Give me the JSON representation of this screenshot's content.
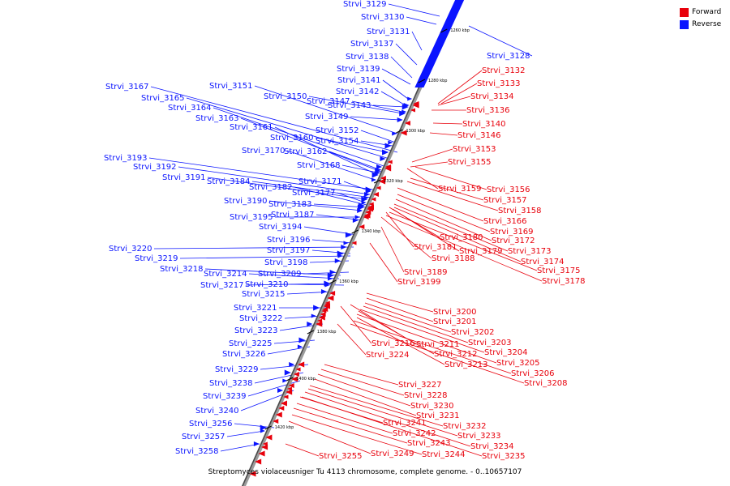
{
  "legend": {
    "forward": {
      "label": "Forward",
      "color": "#e8000b"
    },
    "reverse": {
      "label": "Reverse",
      "color": "#0a14ff"
    }
  },
  "caption": "Streptomyces violaceusniger Tu 4113 chromosome, complete genome. - 0..10657107",
  "ticks": [
    "1260 kbp",
    "1280 kbp",
    "1300 kbp",
    "1320 kbp",
    "1340 kbp",
    "1360 kbp",
    "1380 kbp",
    "1400 kbp",
    "1420 kbp"
  ],
  "reverse_genes": [
    "Strvi_3129",
    "Strvi_3130",
    "Strvi_3131",
    "Strvi_3137",
    "Strvi_3138",
    "Strvi_3139",
    "Strvi_3141",
    "Strvi_3142",
    "Strvi_3167",
    "Strvi_3151",
    "Strvi_3165",
    "Strvi_3150",
    "Strvi_3147",
    "Strvi_3164",
    "Strvi_3143",
    "Strvi_3163",
    "Strvi_3149",
    "Strvi_3161",
    "Strvi_3152",
    "Strvi_3160",
    "Strvi_3154",
    "Strvi_3170",
    "Strvi_3162",
    "Strvi_3193",
    "Strvi_3168",
    "Strvi_3192",
    "Strvi_3191",
    "Strvi_3184",
    "Strvi_3171",
    "Strvi_3182",
    "Strvi_3177",
    "Strvi_3190",
    "Strvi_3183",
    "Strvi_3195",
    "Strvi_3187",
    "Strvi_3194",
    "Strvi_3196",
    "Strvi_3220",
    "Strvi_3197",
    "Strvi_3219",
    "Strvi_3198",
    "Strvi_3218",
    "Strvi_3214",
    "Strvi_3209",
    "Strvi_3217",
    "Strvi_3210",
    "Strvi_3215",
    "Strvi_3221",
    "Strvi_3222",
    "Strvi_3223",
    "Strvi_3225",
    "Strvi_3226",
    "Strvi_3229",
    "Strvi_3238",
    "Strvi_3239",
    "Strvi_3240",
    "Strvi_3256",
    "Strvi_3257",
    "Strvi_3258",
    "Strvi_3128"
  ],
  "forward_genes": [
    "Strvi_3132",
    "Strvi_3133",
    "Strvi_3134",
    "Strvi_3136",
    "Strvi_3140",
    "Strvi_3146",
    "Strvi_3153",
    "Strvi_3155",
    "Strvi_3159",
    "Strvi_3156",
    "Strvi_3157",
    "Strvi_3158",
    "Strvi_3166",
    "Strvi_3169",
    "Strvi_3180",
    "Strvi_3172",
    "Strvi_3181",
    "Strvi_3179",
    "Strvi_3173",
    "Strvi_3188",
    "Strvi_3174",
    "Strvi_3175",
    "Strvi_3189",
    "Strvi_3178",
    "Strvi_3199",
    "Strvi_3200",
    "Strvi_3201",
    "Strvi_3202",
    "Strvi_3203",
    "Strvi_3216",
    "Strvi_3211",
    "Strvi_3204",
    "Strvi_3224",
    "Strvi_3212",
    "Strvi_3205",
    "Strvi_3213",
    "Strvi_3206",
    "Strvi_3208",
    "Strvi_3227",
    "Strvi_3228",
    "Strvi_3230",
    "Strvi_3231",
    "Strvi_3241",
    "Strvi_3232",
    "Strvi_3242",
    "Strvi_3233",
    "Strvi_3243",
    "Strvi_3234",
    "Strvi_3255",
    "Strvi_3249",
    "Strvi_3244",
    "Strvi_3235"
  ]
}
